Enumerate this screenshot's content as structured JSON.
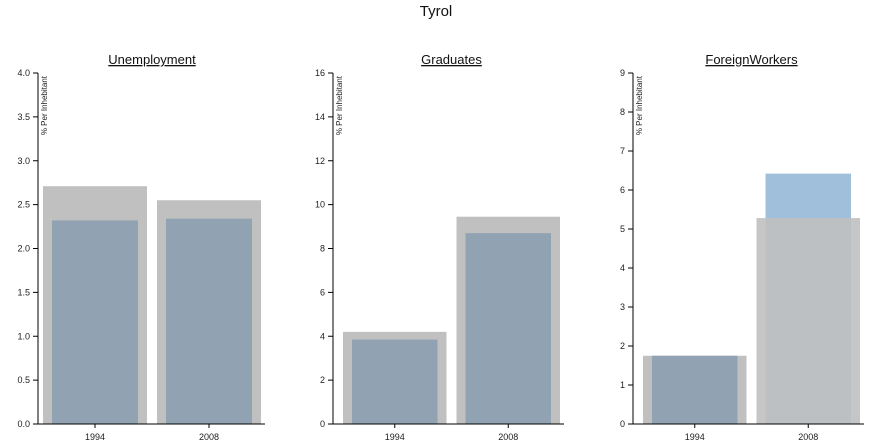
{
  "title": "Tyrol",
  "colors": {
    "outer_bar": "#c0c0c0",
    "inner_bar": "#91a3b2",
    "inner_bar_highlight": "#9fbfda"
  },
  "chart_data": [
    {
      "type": "bar",
      "title": "Unemployment",
      "ylabel": "% Per Inhebitant",
      "categories": [
        "1994",
        "2008"
      ],
      "ylim": [
        0,
        4
      ],
      "yticks": [
        "0.0",
        "0.5",
        "1.0",
        "1.5",
        "2.0",
        "2.5",
        "3.0",
        "3.5",
        "4.0"
      ],
      "series": [
        {
          "values": [
            2.71,
            2.55
          ]
        },
        {
          "values": [
            2.32,
            2.34
          ]
        }
      ]
    },
    {
      "type": "bar",
      "title": "Graduates",
      "ylabel": "% Per Inhebitant",
      "categories": [
        "1994",
        "2008"
      ],
      "ylim": [
        0,
        16
      ],
      "yticks": [
        "0",
        "2",
        "4",
        "6",
        "8",
        "10",
        "12",
        "14",
        "16"
      ],
      "series": [
        {
          "values": [
            4.2,
            9.45
          ]
        },
        {
          "values": [
            3.85,
            8.7
          ]
        }
      ]
    },
    {
      "type": "bar",
      "title": "ForeignWorkers",
      "ylabel": "% Per Inhebitant",
      "categories": [
        "1994",
        "2008"
      ],
      "ylim": [
        0,
        9
      ],
      "yticks": [
        "0",
        "1",
        "2",
        "3",
        "4",
        "5",
        "6",
        "7",
        "8",
        "9"
      ],
      "series": [
        {
          "values": [
            1.75,
            5.28
          ]
        },
        {
          "values": [
            1.75,
            6.42
          ]
        }
      ]
    }
  ]
}
